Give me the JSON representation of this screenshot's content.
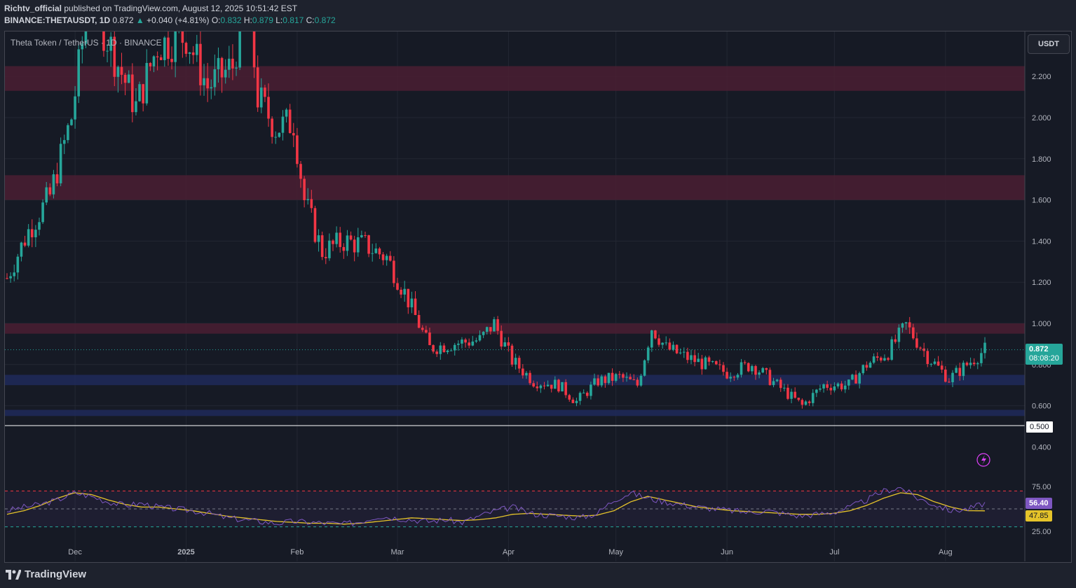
{
  "header": {
    "author": "Richtv_official",
    "published": "published on TradingView.com, August 12, 2025 10:51:42 EST",
    "symbol": "BINANCE:THETAUSDT, 1D",
    "last": "0.872",
    "change": "+0.040 (+4.81%)",
    "open_label": "O:",
    "open": "0.832",
    "high_label": "H:",
    "high": "0.879",
    "low_label": "L:",
    "low": "0.817",
    "close_label": "C:",
    "close": "0.872"
  },
  "chart_title": "Theta Token / TetherUS · 1D · BINANCE",
  "currency_button": "USDT",
  "price_badge": {
    "value": "0.872",
    "countdown": "08:08:20"
  },
  "scale_badge": "0.500",
  "rsi_badges": {
    "rsi": "56.40",
    "ma": "47.85"
  },
  "footer": {
    "brand": "TradingView"
  },
  "colors": {
    "up": "#26a69a",
    "down": "#f23645",
    "resistance_zone": "#4a1f33",
    "support_zone": "#1e2a5a",
    "rsi_line": "#7e57c2",
    "rsi_ma": "#e5c32a"
  },
  "chart_data": [
    {
      "type": "candlestick",
      "title": "Theta Token / TetherUS · 1D · BINANCE",
      "y_axis_ticks": [
        "2.200",
        "2.000",
        "1.800",
        "1.600",
        "1.400",
        "1.200",
        "1.000",
        "0.800",
        "0.600",
        "0.400"
      ],
      "x_axis_ticks": [
        "Dec",
        "2025",
        "Feb",
        "Mar",
        "Apr",
        "May",
        "Jun",
        "Jul",
        "Aug"
      ],
      "ylim": [
        0.35,
        2.35
      ],
      "last_price": 0.872,
      "zones": [
        {
          "kind": "resistance",
          "from": 2.13,
          "to": 2.25
        },
        {
          "kind": "resistance",
          "from": 1.6,
          "to": 1.72
        },
        {
          "kind": "resistance",
          "from": 0.95,
          "to": 1.0
        },
        {
          "kind": "support",
          "from": 0.7,
          "to": 0.75
        },
        {
          "kind": "support",
          "from": 0.55,
          "to": 0.58
        }
      ],
      "close_series_approx": [
        [
          "2024-11-12",
          1.22
        ],
        [
          "2024-11-18",
          1.45
        ],
        [
          "2024-11-24",
          1.62
        ],
        [
          "2024-11-30",
          2.0
        ],
        [
          "2024-12-05",
          2.6
        ],
        [
          "2024-12-12",
          2.3
        ],
        [
          "2024-12-18",
          2.05
        ],
        [
          "2024-12-24",
          2.35
        ],
        [
          "2025-01-01",
          2.4
        ],
        [
          "2025-01-07",
          2.15
        ],
        [
          "2025-01-14",
          2.25
        ],
        [
          "2025-01-18",
          2.6
        ],
        [
          "2025-01-21",
          2.1
        ],
        [
          "2025-01-26",
          1.95
        ],
        [
          "2025-01-31",
          1.98
        ],
        [
          "2025-02-03",
          1.6
        ],
        [
          "2025-02-08",
          1.35
        ],
        [
          "2025-02-14",
          1.4
        ],
        [
          "2025-02-20",
          1.38
        ],
        [
          "2025-02-26",
          1.32
        ],
        [
          "2025-03-03",
          1.15
        ],
        [
          "2025-03-10",
          0.88
        ],
        [
          "2025-03-16",
          0.9
        ],
        [
          "2025-03-24",
          0.92
        ],
        [
          "2025-03-28",
          1.0
        ],
        [
          "2025-04-02",
          0.82
        ],
        [
          "2025-04-08",
          0.72
        ],
        [
          "2025-04-15",
          0.7
        ],
        [
          "2025-04-20",
          0.62
        ],
        [
          "2025-04-26",
          0.72
        ],
        [
          "2025-05-02",
          0.74
        ],
        [
          "2025-05-07",
          0.7
        ],
        [
          "2025-05-11",
          0.98
        ],
        [
          "2025-05-15",
          0.88
        ],
        [
          "2025-05-20",
          0.84
        ],
        [
          "2025-05-26",
          0.8
        ],
        [
          "2025-06-01",
          0.76
        ],
        [
          "2025-06-08",
          0.8
        ],
        [
          "2025-06-15",
          0.7
        ],
        [
          "2025-06-22",
          0.6
        ],
        [
          "2025-06-28",
          0.7
        ],
        [
          "2025-07-05",
          0.7
        ],
        [
          "2025-07-10",
          0.8
        ],
        [
          "2025-07-16",
          0.86
        ],
        [
          "2025-07-21",
          0.99
        ],
        [
          "2025-07-27",
          0.84
        ],
        [
          "2025-08-02",
          0.73
        ],
        [
          "2025-08-07",
          0.8
        ],
        [
          "2025-08-12",
          0.872
        ]
      ]
    },
    {
      "type": "line",
      "title": "RSI",
      "y_axis_ticks": [
        "75.00",
        "25.00"
      ],
      "levels": [
        70,
        50,
        30
      ],
      "ylim": [
        20,
        80
      ],
      "series": [
        {
          "values_approx": [
            48,
            52,
            55,
            60,
            68,
            64,
            58,
            54,
            56,
            52,
            50,
            48,
            45,
            40,
            38,
            36,
            34,
            36,
            35,
            34,
            33,
            36,
            42,
            40,
            38,
            36,
            38,
            35,
            42,
            48,
            52,
            45,
            43,
            42,
            40,
            45,
            60,
            68,
            62,
            58,
            55,
            52,
            50,
            48,
            46,
            48,
            45,
            42,
            44,
            46,
            52,
            60,
            70,
            74,
            62,
            55,
            48,
            50,
            56.4
          ]
        },
        {
          "values_approx": [
            44,
            48,
            54,
            62,
            68,
            66,
            60,
            55,
            52,
            52,
            50,
            48,
            45,
            42,
            40,
            38,
            36,
            35,
            34,
            34,
            33,
            34,
            36,
            38,
            40,
            39,
            38,
            37,
            38,
            40,
            44,
            45,
            44,
            43,
            42,
            43,
            48,
            58,
            64,
            60,
            56,
            52,
            50,
            48,
            47,
            46,
            45,
            44,
            44,
            45,
            48,
            54,
            62,
            68,
            66,
            58,
            52,
            48,
            47.85
          ]
        }
      ]
    }
  ]
}
